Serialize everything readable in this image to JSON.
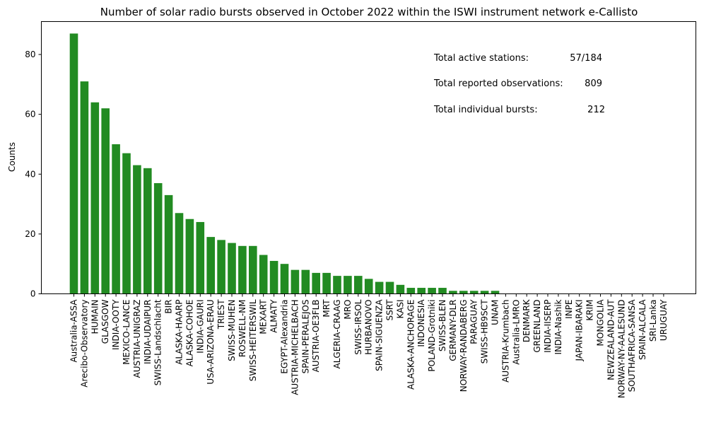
{
  "chart_data": {
    "type": "bar",
    "title": "Number of solar radio bursts observed in October 2022 within the ISWI instrument network e-Callisto",
    "xlabel": "",
    "ylabel": "Counts",
    "ylim": [
      0,
      91
    ],
    "yticks": [
      0,
      20,
      40,
      60,
      80
    ],
    "grid": false,
    "bar_color": "#228b22",
    "categories": [
      "Australia-ASSA",
      "Arecibo-Observatory",
      "HUMAIN",
      "GLASGOW",
      "INDIA-OOTY",
      "MEXICO-LANCE",
      "AUSTRIA-UNIGRAZ",
      "INDIA-UDAIPUR",
      "SWISS-Landschlacht",
      "BIR",
      "ALASKA-HAARP",
      "ALASKA-COHOE",
      "INDIA-GAURI",
      "USA-ARIZONA-ERAU",
      "TRIEST",
      "SWISS-MUHEN",
      "ROSWELL-NM",
      "SWISS-HEITERSWIL",
      "MEXART",
      "ALMATY",
      "EGYPT-Alexandria",
      "AUSTRIA-MICHELBACH",
      "SPAIN-PERALEJOS",
      "AUSTRIA-OE3FLB",
      "MRT",
      "ALGERIA-CRAAG",
      "MRO",
      "SWISS-IRSOL",
      "HURBANOVO",
      "SPAIN-SIGUENZA",
      "SSRT",
      "KASI",
      "ALASKA-ANCHORAGE",
      "INDONESIA",
      "POLAND-Grotniki",
      "SWISS-BLEN",
      "GERMANY-DLR",
      "NORWAY-RANDABERG",
      "PARAGUAY",
      "SWISS-HB9SCT",
      "UNAM",
      "AUSTRIA-Krumbach",
      "Australia-LMRO",
      "DENMARK",
      "GREENLAND",
      "INDIA-IISERP",
      "INDIA-Nashik",
      "INPE",
      "JAPAN-IBARAKI",
      "KRIM",
      "MONGOLIA",
      "NEWZEALAND-AUT",
      "NORWAY-NY-AALESUND",
      "SOUTHAFRICA-SANSA",
      "SPAIN-ALCALA",
      "SRI-Lanka",
      "URUGUAY"
    ],
    "values": [
      87,
      71,
      64,
      62,
      50,
      47,
      43,
      42,
      37,
      33,
      27,
      25,
      24,
      19,
      18,
      17,
      16,
      16,
      13,
      11,
      10,
      8,
      8,
      7,
      7,
      6,
      6,
      6,
      5,
      4,
      4,
      3,
      2,
      2,
      2,
      2,
      1,
      1,
      1,
      1,
      1,
      0,
      0,
      0,
      0,
      0,
      0,
      0,
      0,
      0,
      0,
      0,
      0,
      0,
      0,
      0,
      0
    ],
    "annotations": [
      {
        "label": "Total active stations:",
        "value": "57/184"
      },
      {
        "label": "Total reported observations:",
        "value": "809"
      },
      {
        "label": "Total individual bursts:",
        "value": "212"
      }
    ]
  }
}
